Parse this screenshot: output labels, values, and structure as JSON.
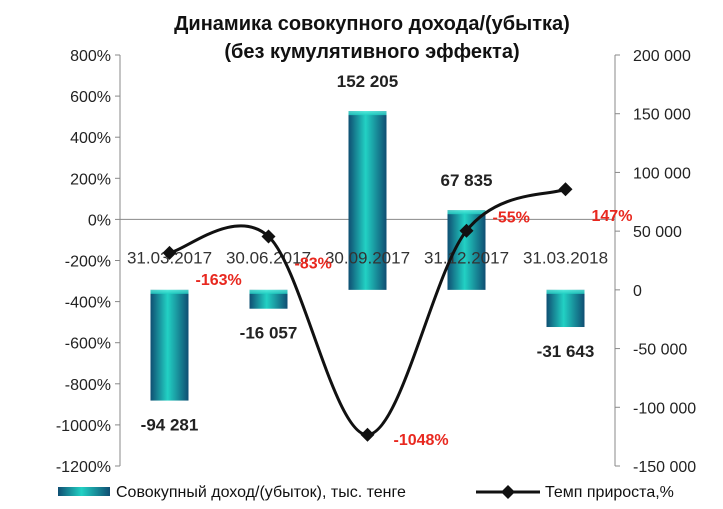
{
  "chart_data": {
    "type": "bar",
    "title_line1": "Динамика совокупного дохода/(убытка)",
    "title_line2": "(без кумулятивного эффекта)",
    "categories": [
      "31.03.2017",
      "30.06.2017",
      "30.09.2017",
      "31.12.2017",
      "31.03.2018"
    ],
    "series": [
      {
        "name": "Совокупный доход/(убыток), тыс. тенге",
        "axis": "right",
        "chart_type": "bar",
        "values": [
          -94281,
          -16057,
          152205,
          67835,
          -31643
        ],
        "labels": [
          "-94 281",
          "-16 057",
          "152 205",
          "67 835",
          "-31 643"
        ]
      },
      {
        "name": "Темп прироста,%",
        "axis": "left",
        "chart_type": "line",
        "values": [
          -163,
          -83,
          -1048,
          -55,
          147
        ],
        "labels": [
          "-163%",
          "-83%",
          "-1048%",
          "-55%",
          "147%"
        ]
      }
    ],
    "left_axis": {
      "min": -1200,
      "max": 800,
      "step": 200,
      "ticks": [
        "800%",
        "600%",
        "400%",
        "200%",
        "0%",
        "-200%",
        "-400%",
        "-600%",
        "-800%",
        "-1000%",
        "-1200%"
      ]
    },
    "right_axis": {
      "min": -150000,
      "max": 200000,
      "step": 50000,
      "ticks": [
        "200 000",
        "150 000",
        "100 000",
        "50 000",
        "0",
        "-50 000",
        "-100 000",
        "-150 000"
      ]
    },
    "grid": false,
    "legend_position": "bottom",
    "colors": {
      "bar_dark": "#0f4e72",
      "bar_light": "#22d1c4",
      "line": "#111111",
      "pct_label": "#e8281f"
    }
  }
}
